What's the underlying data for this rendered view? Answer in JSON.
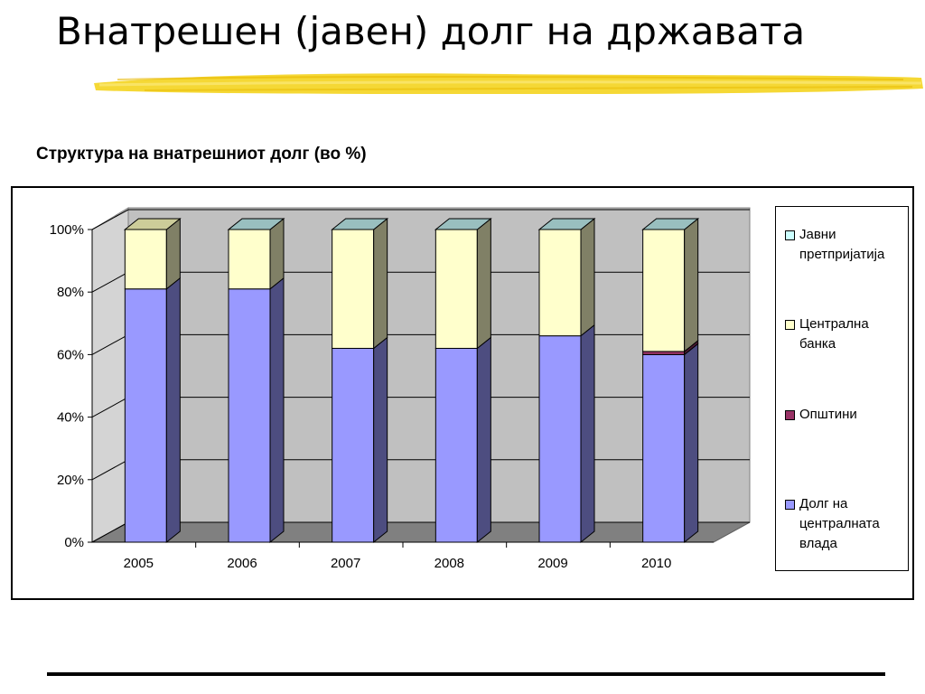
{
  "slide": {
    "title": "Внатрешен (јавен) долг на државата"
  },
  "chart_data": {
    "type": "bar",
    "stacked": true,
    "percent": true,
    "title": "Структура на внатрешниот долг (во %)",
    "categories": [
      "2005",
      "2006",
      "2007",
      "2008",
      "2009",
      "2010"
    ],
    "ylim": [
      0,
      100
    ],
    "yticks": [
      "0%",
      "20%",
      "40%",
      "60%",
      "80%",
      "100%"
    ],
    "grid": true,
    "legend_position": "right",
    "series": [
      {
        "name": "Долг на централната влада",
        "color": "#9999ff",
        "values": [
          81,
          81,
          62,
          62,
          66,
          60
        ]
      },
      {
        "name": "Општини",
        "color": "#993366",
        "values": [
          0,
          0,
          0,
          0,
          0,
          1
        ]
      },
      {
        "name": "Централна банка",
        "color": "#ffffcc",
        "values": [
          19,
          19,
          38,
          38,
          34,
          39
        ]
      },
      {
        "name": "Јавни претпријатија",
        "color": "#ccffff",
        "values": [
          0,
          0,
          0,
          0,
          0,
          0
        ]
      }
    ]
  },
  "legend": {
    "items": [
      {
        "label": "Јавни претпријатија",
        "color": "#ccffff"
      },
      {
        "label": "Централна банка",
        "color": "#ffffcc"
      },
      {
        "label": "Општини",
        "color": "#993366"
      },
      {
        "label": "Долг на централната влада",
        "color": "#9999ff"
      }
    ]
  }
}
